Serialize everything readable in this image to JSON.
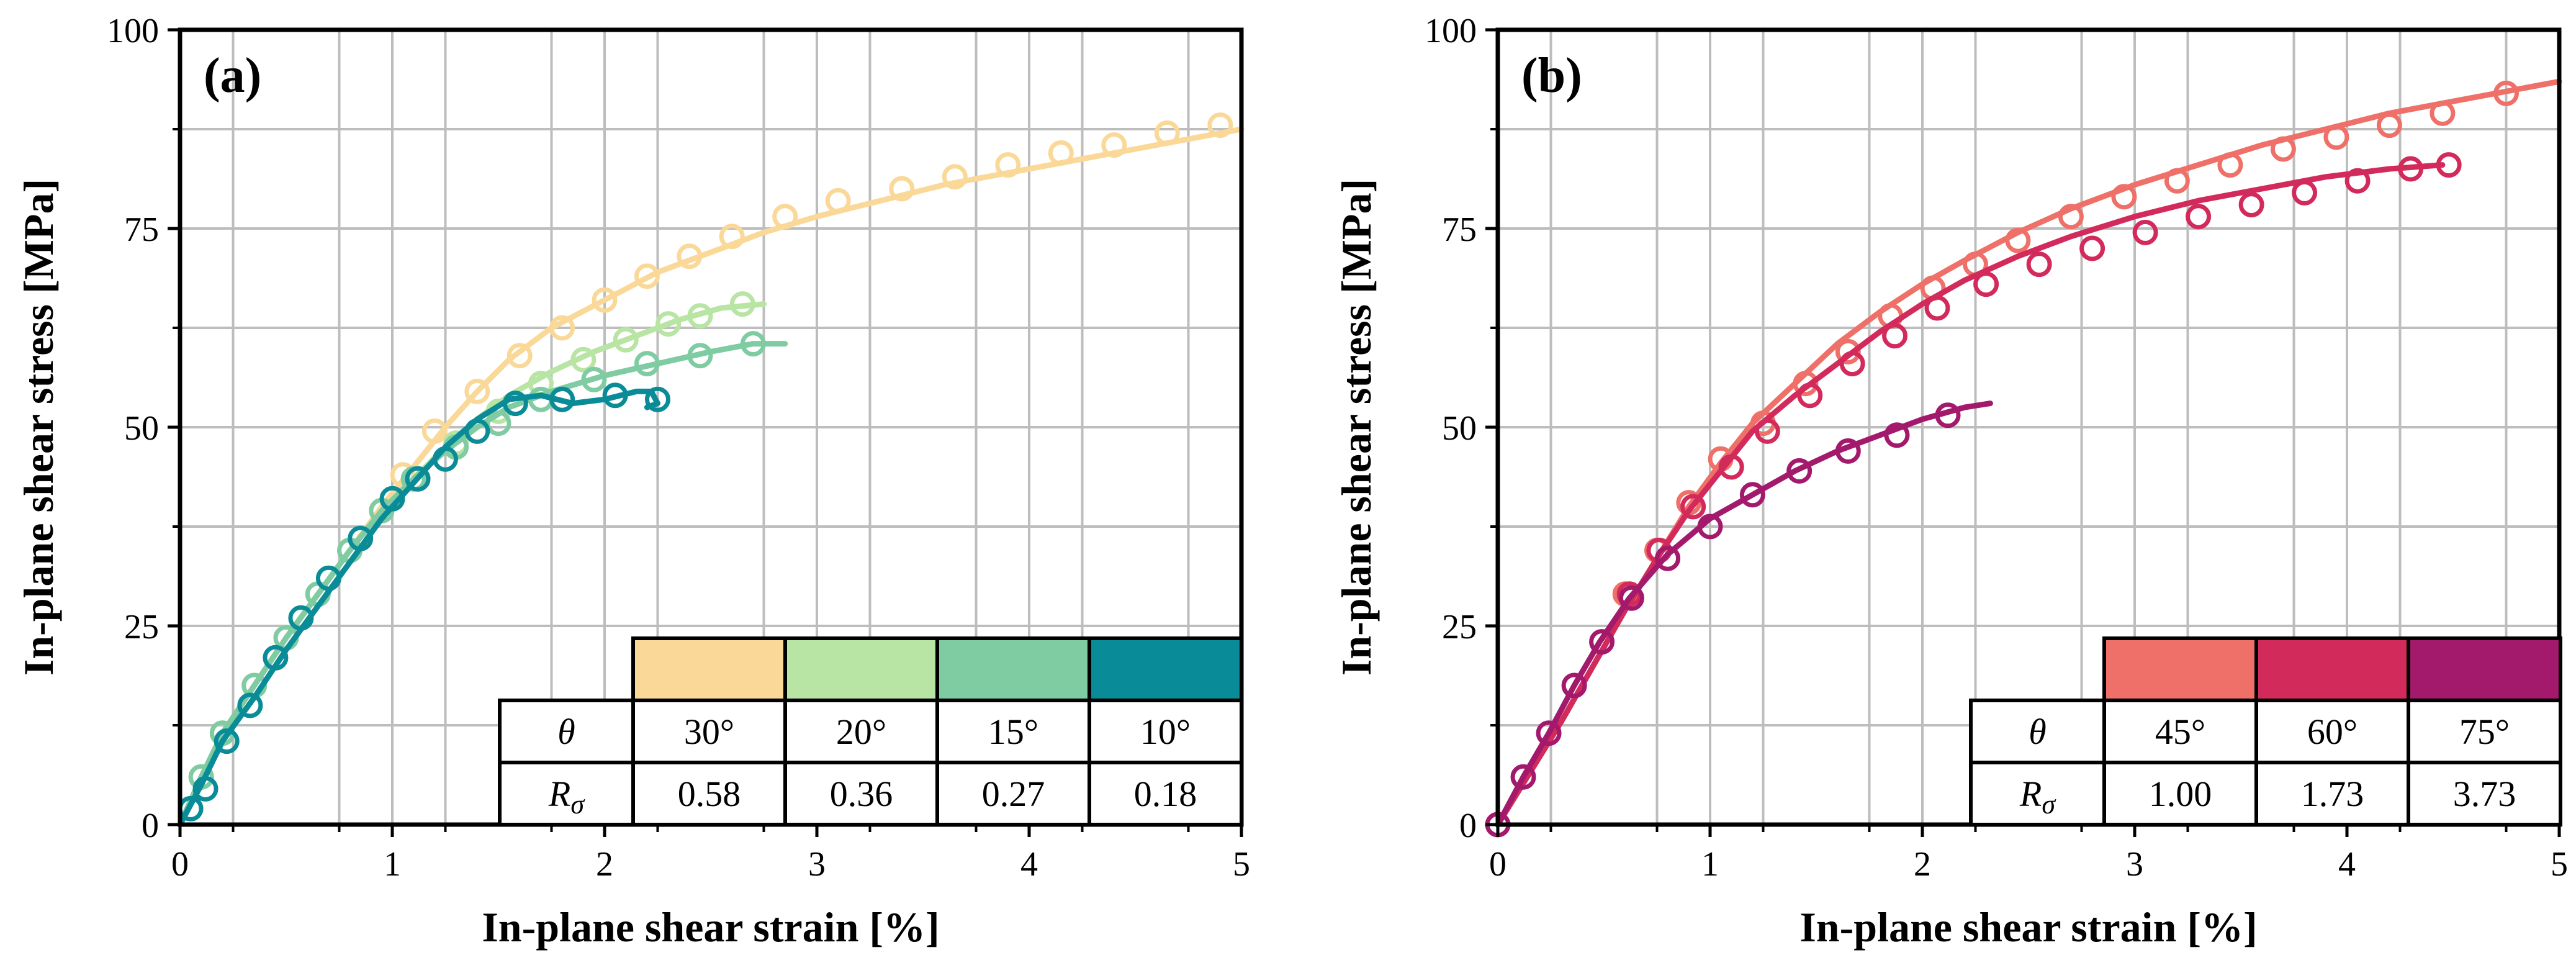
{
  "chart_data": [
    {
      "type": "line",
      "panel_label": "(a)",
      "xlabel": "In-plane shear strain [%]",
      "ylabel": "In-plane shear stress [MPa]",
      "xlim": [
        0,
        5
      ],
      "ylim": [
        0,
        100
      ],
      "xticks": [
        "0",
        "1",
        "2",
        "3",
        "4",
        "5"
      ],
      "yticks": [
        "0",
        "25",
        "50",
        "75",
        "100"
      ],
      "grid": true,
      "marker": "open-circle",
      "legend": {
        "placement": "bottom-right",
        "theta_header": "θ",
        "r_header_main": "R",
        "r_header_sub": "σ"
      },
      "series": [
        {
          "name": "30°",
          "theta": "30°",
          "r_sigma": "0.58",
          "color": "#FAD898",
          "circle_fill": "none",
          "x": [
            0,
            0.1,
            0.2,
            0.35,
            0.5,
            0.65,
            0.8,
            0.95,
            1.1,
            1.25,
            1.4,
            1.55,
            1.75,
            2.0,
            2.25,
            2.5,
            2.75,
            3.0,
            3.3,
            3.6,
            3.9,
            4.2,
            4.5,
            4.8,
            5.0
          ],
          "y": [
            0,
            6,
            11.5,
            17.5,
            23.5,
            29,
            34.5,
            40,
            45,
            50,
            54.5,
            58.5,
            62.5,
            66,
            69.5,
            72,
            74.5,
            76.5,
            78.5,
            80.5,
            82,
            83.5,
            85,
            86.5,
            87.5
          ],
          "marker_x": [
            0.1,
            0.2,
            0.35,
            0.5,
            0.65,
            0.8,
            0.95,
            1.05,
            1.2,
            1.4,
            1.6,
            1.8,
            2.0,
            2.2,
            2.4,
            2.6,
            2.85,
            3.1,
            3.4,
            3.65,
            3.9,
            4.15,
            4.4,
            4.65,
            4.9
          ],
          "marker_y": [
            6,
            11.5,
            17.5,
            23.5,
            29,
            34.5,
            39.5,
            44,
            49.5,
            54.5,
            59,
            62.5,
            66,
            69,
            71.5,
            74,
            76.5,
            78.5,
            80,
            81.5,
            83,
            84.5,
            85.5,
            87,
            88
          ]
        },
        {
          "name": "20°",
          "theta": "20°",
          "r_sigma": "0.36",
          "color": "#B8E4A4",
          "circle_fill": "none",
          "x": [
            0,
            0.1,
            0.2,
            0.35,
            0.5,
            0.65,
            0.8,
            0.95,
            1.1,
            1.25,
            1.4,
            1.55,
            1.75,
            1.95,
            2.15,
            2.35,
            2.55,
            2.75
          ],
          "y": [
            0,
            6,
            11.5,
            17.5,
            23.5,
            29,
            34.5,
            39.5,
            43.5,
            47.5,
            51,
            54,
            57,
            59.5,
            61.5,
            63.5,
            65,
            65.5
          ],
          "marker_x": [
            0.1,
            0.2,
            0.35,
            0.5,
            0.65,
            0.8,
            0.95,
            1.1,
            1.3,
            1.5,
            1.7,
            1.9,
            2.1,
            2.3,
            2.45,
            2.65
          ],
          "marker_y": [
            6,
            11.5,
            17.5,
            23.5,
            29,
            34.5,
            39.5,
            43.5,
            48,
            52,
            55.5,
            58.5,
            61,
            63,
            64,
            65.5
          ]
        },
        {
          "name": "15°",
          "theta": "15°",
          "r_sigma": "0.27",
          "color": "#7FCBA2",
          "circle_fill": "none",
          "x": [
            0,
            0.1,
            0.2,
            0.35,
            0.5,
            0.65,
            0.8,
            0.95,
            1.1,
            1.25,
            1.4,
            1.55,
            1.75,
            2.0,
            2.25,
            2.5,
            2.7,
            2.85
          ],
          "y": [
            0,
            6,
            11.5,
            17.5,
            23.5,
            29,
            34.5,
            39.5,
            43.5,
            47,
            50,
            52.5,
            54.5,
            56.5,
            58,
            59.5,
            60.5,
            60.5
          ],
          "marker_x": [
            0.1,
            0.2,
            0.35,
            0.5,
            0.65,
            0.8,
            0.95,
            1.1,
            1.3,
            1.5,
            1.7,
            1.95,
            2.2,
            2.45,
            2.7
          ],
          "marker_y": [
            6,
            11.5,
            17.5,
            23.5,
            29,
            34.5,
            39.5,
            43.5,
            47.5,
            50.5,
            53.5,
            56,
            58,
            59,
            60.5
          ]
        },
        {
          "name": "10°",
          "theta": "10°",
          "r_sigma": "0.18",
          "color": "#0A8C98",
          "circle_fill": "none",
          "x": [
            0,
            0.1,
            0.2,
            0.35,
            0.5,
            0.65,
            0.8,
            0.95,
            1.1,
            1.25,
            1.4,
            1.55,
            1.7,
            1.85,
            2.0,
            2.15,
            2.22,
            2.25,
            2.2
          ],
          "y": [
            0,
            5,
            10.5,
            16,
            22,
            27.5,
            33,
            38.5,
            43,
            47.5,
            51,
            53.5,
            54,
            53,
            53.5,
            54.5,
            54.5,
            53,
            52.5
          ],
          "marker_x": [
            0.05,
            0.12,
            0.22,
            0.33,
            0.45,
            0.57,
            0.7,
            0.85,
            1.0,
            1.12,
            1.25,
            1.4,
            1.58,
            1.8,
            2.05,
            2.25
          ],
          "marker_y": [
            2,
            4.5,
            10.5,
            15,
            21,
            26,
            31,
            36,
            41,
            43.5,
            46,
            49.5,
            53,
            53.5,
            54,
            53.5
          ]
        }
      ]
    },
    {
      "type": "line",
      "panel_label": "(b)",
      "xlabel": "In-plane shear strain [%]",
      "ylabel": "In-plane shear stress [MPa]",
      "xlim": [
        0,
        5
      ],
      "ylim": [
        0,
        100
      ],
      "xticks": [
        "0",
        "1",
        "2",
        "3",
        "4",
        "5"
      ],
      "yticks": [
        "0",
        "25",
        "50",
        "75",
        "100"
      ],
      "grid": true,
      "marker": "open-circle",
      "legend": {
        "placement": "bottom-right",
        "theta_header": "θ",
        "r_header_main": "R",
        "r_header_sub": "σ"
      },
      "series": [
        {
          "name": "45°",
          "theta": "45°",
          "r_sigma": "1.00",
          "color": "#EE7068",
          "circle_fill": "none",
          "x": [
            0,
            0.15,
            0.3,
            0.45,
            0.6,
            0.75,
            0.9,
            1.05,
            1.2,
            1.4,
            1.6,
            1.8,
            2.0,
            2.2,
            2.45,
            2.7,
            3.0,
            3.3,
            3.6,
            3.9,
            4.2,
            4.5,
            4.8,
            5.0
          ],
          "y": [
            0,
            6.5,
            13,
            20,
            27,
            33.5,
            40,
            45.5,
            50.5,
            55.5,
            60.5,
            64.5,
            68,
            71,
            74.5,
            77.5,
            80.5,
            83,
            85.5,
            87.5,
            89.5,
            91,
            92.5,
            93.5
          ],
          "marker_x": [
            0.6,
            0.75,
            0.9,
            1.05,
            1.25,
            1.45,
            1.65,
            1.85,
            2.05,
            2.25,
            2.45,
            2.7,
            2.95,
            3.2,
            3.45,
            3.7,
            3.95,
            4.2,
            4.45,
            4.75
          ],
          "marker_y": [
            29,
            34.5,
            40.5,
            46,
            50.5,
            55.5,
            59.5,
            64,
            67.5,
            70.5,
            73.5,
            76.5,
            79,
            81,
            83,
            85,
            86.5,
            88,
            89.5,
            92
          ]
        },
        {
          "name": "60°",
          "theta": "60°",
          "r_sigma": "1.73",
          "color": "#D32A5C",
          "circle_fill": "none",
          "x": [
            0,
            0.15,
            0.3,
            0.45,
            0.6,
            0.75,
            0.9,
            1.05,
            1.2,
            1.4,
            1.6,
            1.8,
            2.0,
            2.2,
            2.45,
            2.7,
            3.0,
            3.3,
            3.6,
            3.9,
            4.2,
            4.45
          ],
          "y": [
            0,
            6.5,
            13,
            20,
            27,
            33.5,
            39.5,
            44.5,
            49.5,
            54,
            58,
            62,
            65.5,
            68.5,
            71.5,
            74,
            76.5,
            78.5,
            80,
            81.5,
            82.5,
            83
          ],
          "marker_x": [
            0.62,
            0.76,
            0.92,
            1.1,
            1.27,
            1.47,
            1.67,
            1.87,
            2.07,
            2.3,
            2.55,
            2.8,
            3.05,
            3.3,
            3.55,
            3.8,
            4.05,
            4.3,
            4.48
          ],
          "marker_y": [
            29,
            34.5,
            40,
            45,
            49.5,
            54,
            58,
            61.5,
            65,
            68,
            70.5,
            72.5,
            74.5,
            76.5,
            78,
            79.5,
            81,
            82.5,
            83
          ]
        },
        {
          "name": "75°",
          "theta": "75°",
          "r_sigma": "3.73",
          "color": "#A3196C",
          "circle_fill": "none",
          "x": [
            0,
            0.12,
            0.24,
            0.36,
            0.48,
            0.62,
            0.8,
            1.0,
            1.2,
            1.4,
            1.6,
            1.8,
            2.0,
            2.2,
            2.32
          ],
          "y": [
            0,
            6,
            11.5,
            17.5,
            23,
            28.5,
            34,
            38.5,
            41.5,
            44.5,
            47,
            49,
            51,
            52.5,
            53
          ],
          "marker_x": [
            0,
            0.12,
            0.24,
            0.36,
            0.49,
            0.63,
            0.8,
            1.0,
            1.2,
            1.42,
            1.65,
            1.88,
            2.12
          ],
          "marker_y": [
            0,
            6,
            11.5,
            17.5,
            23,
            28.5,
            33.5,
            37.5,
            41.5,
            44.5,
            47,
            49,
            51.5
          ]
        }
      ]
    }
  ]
}
